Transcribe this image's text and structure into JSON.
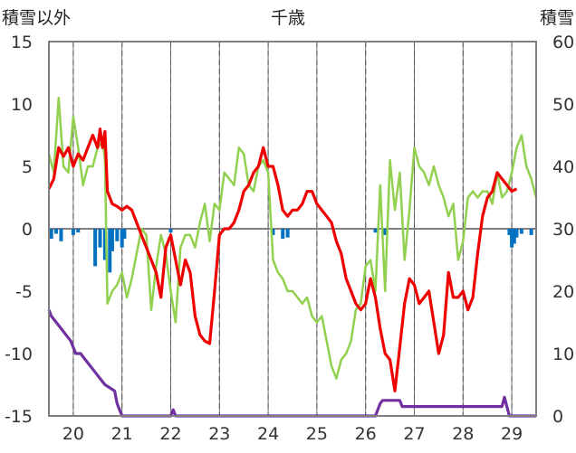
{
  "chart_data": {
    "type": "line",
    "title": "千歳",
    "ylabel_left": "積雪以外",
    "ylabel_right": "積雪",
    "xlabel": "",
    "x_ticks": [
      "20",
      "21",
      "22",
      "23",
      "24",
      "25",
      "26",
      "27",
      "28",
      "29"
    ],
    "y_left_ticks": [
      "15",
      "10",
      "5",
      "0",
      "-5",
      "-10",
      "-15"
    ],
    "y_right_ticks": [
      "60",
      "50",
      "40",
      "30",
      "20",
      "10",
      "0"
    ],
    "y_left_range": [
      -15,
      15
    ],
    "y_right_range": [
      0,
      60
    ],
    "x_range": [
      19.5,
      29.5
    ],
    "grid": {
      "vertical_dashed_at_day_centers": true,
      "vertical_solid_at_day_boundaries": true,
      "horizontal_zero_line": true
    },
    "colors": {
      "temperature": "#ee0000",
      "diff": "#92d050",
      "precipitation": "#0070c0",
      "snow_depth": "#7030a0",
      "zero_line": "#808080",
      "frame": "#7f7f7f"
    },
    "series": [
      {
        "key": "temperature",
        "axis": "left",
        "points": [
          [
            19.5,
            3.2
          ],
          [
            19.6,
            4.0
          ],
          [
            19.7,
            6.5
          ],
          [
            19.8,
            5.8
          ],
          [
            19.9,
            6.5
          ],
          [
            20.0,
            5.0
          ],
          [
            20.1,
            6.0
          ],
          [
            20.2,
            5.5
          ],
          [
            20.3,
            6.5
          ],
          [
            20.4,
            7.5
          ],
          [
            20.5,
            6.5
          ],
          [
            20.55,
            8.0
          ],
          [
            20.6,
            6.5
          ],
          [
            20.65,
            7.8
          ],
          [
            20.7,
            3.0
          ],
          [
            20.8,
            2.0
          ],
          [
            20.9,
            1.8
          ],
          [
            21.0,
            1.5
          ],
          [
            21.1,
            1.8
          ],
          [
            21.2,
            1.5
          ],
          [
            21.3,
            0.5
          ],
          [
            21.4,
            -0.5
          ],
          [
            21.5,
            -1.5
          ],
          [
            21.6,
            -2.5
          ],
          [
            21.7,
            -3.5
          ],
          [
            21.8,
            -5.5
          ],
          [
            21.9,
            -1.5
          ],
          [
            22.0,
            -0.5
          ],
          [
            22.1,
            -2.5
          ],
          [
            22.2,
            -4.5
          ],
          [
            22.3,
            -2.5
          ],
          [
            22.4,
            -3.5
          ],
          [
            22.5,
            -7.0
          ],
          [
            22.6,
            -8.5
          ],
          [
            22.7,
            -9.0
          ],
          [
            22.8,
            -9.2
          ],
          [
            22.9,
            -5.0
          ],
          [
            23.0,
            -0.5
          ],
          [
            23.1,
            0.0
          ],
          [
            23.2,
            0.0
          ],
          [
            23.3,
            0.5
          ],
          [
            23.4,
            1.5
          ],
          [
            23.5,
            3.0
          ],
          [
            23.6,
            3.5
          ],
          [
            23.7,
            4.5
          ],
          [
            23.8,
            5.0
          ],
          [
            23.9,
            6.5
          ],
          [
            24.0,
            5.0
          ],
          [
            24.1,
            5.0
          ],
          [
            24.2,
            3.5
          ],
          [
            24.3,
            1.5
          ],
          [
            24.4,
            1.0
          ],
          [
            24.5,
            1.5
          ],
          [
            24.6,
            1.5
          ],
          [
            24.7,
            2.0
          ],
          [
            24.8,
            3.0
          ],
          [
            24.9,
            3.0
          ],
          [
            25.0,
            2.0
          ],
          [
            25.1,
            1.5
          ],
          [
            25.2,
            1.0
          ],
          [
            25.3,
            0.5
          ],
          [
            25.4,
            -1.0
          ],
          [
            25.5,
            -2.0
          ],
          [
            25.6,
            -4.0
          ],
          [
            25.7,
            -5.0
          ],
          [
            25.8,
            -6.0
          ],
          [
            25.9,
            -6.5
          ],
          [
            26.0,
            -6.0
          ],
          [
            26.1,
            -4.0
          ],
          [
            26.2,
            -5.5
          ],
          [
            26.3,
            -8.0
          ],
          [
            26.4,
            -10.0
          ],
          [
            26.5,
            -10.5
          ],
          [
            26.6,
            -13.0
          ],
          [
            26.7,
            -9.5
          ],
          [
            26.8,
            -6.0
          ],
          [
            26.9,
            -4.0
          ],
          [
            27.0,
            -4.5
          ],
          [
            27.1,
            -6.0
          ],
          [
            27.2,
            -5.5
          ],
          [
            27.3,
            -5.0
          ],
          [
            27.4,
            -7.5
          ],
          [
            27.5,
            -10.0
          ],
          [
            27.6,
            -8.5
          ],
          [
            27.7,
            -3.5
          ],
          [
            27.8,
            -5.5
          ],
          [
            27.9,
            -5.5
          ],
          [
            28.0,
            -5.0
          ],
          [
            28.1,
            -6.5
          ],
          [
            28.2,
            -5.5
          ],
          [
            28.3,
            -2.0
          ],
          [
            28.4,
            1.0
          ],
          [
            28.5,
            2.5
          ],
          [
            28.6,
            3.0
          ],
          [
            28.7,
            4.5
          ],
          [
            28.8,
            4.0
          ],
          [
            28.9,
            3.5
          ],
          [
            29.0,
            3.0
          ],
          [
            29.1,
            3.2
          ]
        ]
      },
      {
        "key": "diff",
        "axis": "left",
        "points": [
          [
            19.5,
            6.0
          ],
          [
            19.6,
            4.5
          ],
          [
            19.7,
            10.5
          ],
          [
            19.8,
            5.0
          ],
          [
            19.9,
            4.5
          ],
          [
            20.0,
            9.0
          ],
          [
            20.1,
            6.5
          ],
          [
            20.2,
            3.5
          ],
          [
            20.3,
            5.0
          ],
          [
            20.4,
            5.0
          ],
          [
            20.5,
            6.5
          ],
          [
            20.6,
            7.0
          ],
          [
            20.65,
            5.5
          ],
          [
            20.7,
            -6.0
          ],
          [
            20.8,
            -5.0
          ],
          [
            20.9,
            -4.5
          ],
          [
            21.0,
            -3.5
          ],
          [
            21.1,
            -5.5
          ],
          [
            21.2,
            -4.0
          ],
          [
            21.3,
            -2.0
          ],
          [
            21.4,
            0.0
          ],
          [
            21.5,
            -0.5
          ],
          [
            21.6,
            -6.5
          ],
          [
            21.7,
            -3.0
          ],
          [
            21.8,
            -0.5
          ],
          [
            21.9,
            -2.0
          ],
          [
            22.0,
            -5.0
          ],
          [
            22.1,
            -7.5
          ],
          [
            22.2,
            -1.5
          ],
          [
            22.3,
            -0.5
          ],
          [
            22.4,
            -0.5
          ],
          [
            22.5,
            -1.5
          ],
          [
            22.6,
            0.5
          ],
          [
            22.7,
            2.0
          ],
          [
            22.8,
            -1.0
          ],
          [
            22.9,
            2.0
          ],
          [
            23.0,
            1.5
          ],
          [
            23.1,
            4.5
          ],
          [
            23.2,
            4.0
          ],
          [
            23.3,
            3.5
          ],
          [
            23.4,
            6.5
          ],
          [
            23.5,
            6.0
          ],
          [
            23.6,
            3.5
          ],
          [
            23.7,
            3.0
          ],
          [
            23.8,
            5.0
          ],
          [
            23.9,
            5.5
          ],
          [
            24.0,
            4.5
          ],
          [
            24.1,
            -2.5
          ],
          [
            24.2,
            -3.5
          ],
          [
            24.3,
            -4.0
          ],
          [
            24.4,
            -5.0
          ],
          [
            24.5,
            -5.0
          ],
          [
            24.6,
            -5.5
          ],
          [
            24.7,
            -6.0
          ],
          [
            24.8,
            -5.5
          ],
          [
            24.9,
            -7.0
          ],
          [
            25.0,
            -7.5
          ],
          [
            25.1,
            -7.0
          ],
          [
            25.2,
            -9.0
          ],
          [
            25.3,
            -11.0
          ],
          [
            25.4,
            -12.0
          ],
          [
            25.5,
            -10.5
          ],
          [
            25.6,
            -10.0
          ],
          [
            25.7,
            -9.0
          ],
          [
            25.8,
            -6.5
          ],
          [
            25.9,
            -6.0
          ],
          [
            26.0,
            -3.0
          ],
          [
            26.1,
            -2.5
          ],
          [
            26.2,
            -5.0
          ],
          [
            26.3,
            3.5
          ],
          [
            26.4,
            -5.0
          ],
          [
            26.5,
            5.5
          ],
          [
            26.6,
            1.5
          ],
          [
            26.7,
            4.5
          ],
          [
            26.8,
            -2.5
          ],
          [
            26.9,
            1.5
          ],
          [
            27.0,
            6.5
          ],
          [
            27.1,
            5.0
          ],
          [
            27.2,
            4.5
          ],
          [
            27.3,
            3.5
          ],
          [
            27.4,
            5.0
          ],
          [
            27.5,
            3.5
          ],
          [
            27.6,
            2.5
          ],
          [
            27.7,
            1.0
          ],
          [
            27.8,
            2.0
          ],
          [
            27.9,
            -2.5
          ],
          [
            28.0,
            -1.0
          ],
          [
            28.1,
            2.5
          ],
          [
            28.2,
            3.0
          ],
          [
            28.3,
            2.5
          ],
          [
            28.4,
            3.0
          ],
          [
            28.5,
            3.0
          ],
          [
            28.6,
            2.0
          ],
          [
            28.7,
            4.5
          ],
          [
            28.8,
            2.5
          ],
          [
            28.9,
            3.0
          ],
          [
            29.0,
            4.5
          ],
          [
            29.1,
            6.5
          ],
          [
            29.2,
            7.5
          ],
          [
            29.3,
            5.0
          ],
          [
            29.4,
            4.0
          ],
          [
            29.5,
            2.5
          ]
        ]
      },
      {
        "key": "precipitation",
        "axis": "left",
        "type": "bar",
        "points": [
          [
            19.55,
            -0.8
          ],
          [
            19.65,
            -0.4
          ],
          [
            19.75,
            -1.0
          ],
          [
            20.0,
            -0.5
          ],
          [
            20.1,
            -0.3
          ],
          [
            20.45,
            -3.0
          ],
          [
            20.55,
            -1.5
          ],
          [
            20.65,
            -2.5
          ],
          [
            20.75,
            -3.5
          ],
          [
            20.8,
            -1.8
          ],
          [
            20.9,
            -1.0
          ],
          [
            21.0,
            -1.5
          ],
          [
            21.05,
            -0.8
          ],
          [
            22.0,
            -0.3
          ],
          [
            24.1,
            -0.5
          ],
          [
            24.3,
            -0.8
          ],
          [
            24.4,
            -0.7
          ],
          [
            26.2,
            -0.3
          ],
          [
            26.4,
            -0.5
          ],
          [
            28.95,
            -0.5
          ],
          [
            29.0,
            -1.5
          ],
          [
            29.05,
            -1.2
          ],
          [
            29.1,
            -0.7
          ],
          [
            29.2,
            -0.4
          ],
          [
            29.4,
            -0.5
          ]
        ]
      },
      {
        "key": "snow_depth",
        "axis": "right",
        "points": [
          [
            19.5,
            17.0
          ],
          [
            19.55,
            16.0
          ],
          [
            19.65,
            15.0
          ],
          [
            19.75,
            14.0
          ],
          [
            19.85,
            13.0
          ],
          [
            19.95,
            12.0
          ],
          [
            20.05,
            10.0
          ],
          [
            20.15,
            10.0
          ],
          [
            20.25,
            9.0
          ],
          [
            20.35,
            8.0
          ],
          [
            20.45,
            7.0
          ],
          [
            20.55,
            6.0
          ],
          [
            20.65,
            5.0
          ],
          [
            20.75,
            4.5
          ],
          [
            20.85,
            4.0
          ],
          [
            20.9,
            2.0
          ],
          [
            21.0,
            0.0
          ],
          [
            22.0,
            0.0
          ],
          [
            22.05,
            1.0
          ],
          [
            22.1,
            0.0
          ],
          [
            23.5,
            0.0
          ],
          [
            26.2,
            0.0
          ],
          [
            26.25,
            1.0
          ],
          [
            26.3,
            2.0
          ],
          [
            26.35,
            2.5
          ],
          [
            26.7,
            2.5
          ],
          [
            26.75,
            1.5
          ],
          [
            28.8,
            1.5
          ],
          [
            28.85,
            3.0
          ],
          [
            28.9,
            1.5
          ],
          [
            28.95,
            0.0
          ],
          [
            29.5,
            0.0
          ]
        ]
      }
    ]
  }
}
